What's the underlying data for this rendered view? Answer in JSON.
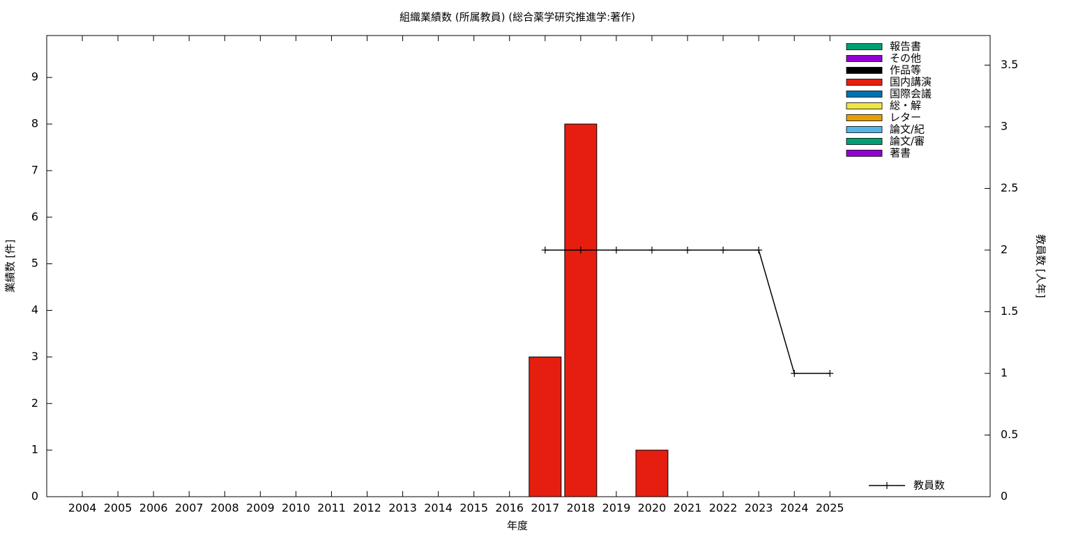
{
  "chart_data": {
    "type": "bar",
    "stacked": true,
    "title": "組織業績数 (所属教員) (総合薬学研究推進学:著作)",
    "xlabel": "年度",
    "ylabel": "業績数 [件]",
    "y2label": "教員数 [人年]",
    "categories": [
      "2004",
      "2005",
      "2006",
      "2007",
      "2008",
      "2009",
      "2010",
      "2011",
      "2012",
      "2013",
      "2014",
      "2015",
      "2016",
      "2017",
      "2018",
      "2019",
      "2020",
      "2021",
      "2022",
      "2023",
      "2024",
      "2025"
    ],
    "series": [
      {
        "name": "報告書",
        "color": "#009e73",
        "values": [
          0,
          0,
          0,
          0,
          0,
          0,
          0,
          0,
          0,
          0,
          0,
          0,
          0,
          0,
          0,
          0,
          0,
          0,
          0,
          0,
          0,
          0
        ]
      },
      {
        "name": "その他",
        "color": "#9400d3",
        "values": [
          0,
          0,
          0,
          0,
          0,
          0,
          0,
          0,
          0,
          0,
          0,
          0,
          0,
          0,
          0,
          0,
          0,
          0,
          0,
          0,
          0,
          0
        ]
      },
      {
        "name": "作品等",
        "color": "#000000",
        "values": [
          0,
          0,
          0,
          0,
          0,
          0,
          0,
          0,
          0,
          0,
          0,
          0,
          0,
          0,
          0,
          0,
          0,
          0,
          0,
          0,
          0,
          0
        ]
      },
      {
        "name": "国内講演",
        "color": "#e51e10",
        "values": [
          0,
          0,
          0,
          0,
          0,
          0,
          0,
          0,
          0,
          0,
          0,
          0,
          0,
          3,
          8,
          0,
          1,
          0,
          0,
          0,
          0,
          0
        ]
      },
      {
        "name": "国際会議",
        "color": "#0072b2",
        "values": [
          0,
          0,
          0,
          0,
          0,
          0,
          0,
          0,
          0,
          0,
          0,
          0,
          0,
          0,
          0,
          0,
          0,
          0,
          0,
          0,
          0,
          0
        ]
      },
      {
        "name": "総・解",
        "color": "#f0e442",
        "values": [
          0,
          0,
          0,
          0,
          0,
          0,
          0,
          0,
          0,
          0,
          0,
          0,
          0,
          0,
          0,
          0,
          0,
          0,
          0,
          0,
          0,
          0
        ]
      },
      {
        "name": "レター",
        "color": "#e69f00",
        "values": [
          0,
          0,
          0,
          0,
          0,
          0,
          0,
          0,
          0,
          0,
          0,
          0,
          0,
          0,
          0,
          0,
          0,
          0,
          0,
          0,
          0,
          0
        ]
      },
      {
        "name": "論文/紀",
        "color": "#56b4e9",
        "values": [
          0,
          0,
          0,
          0,
          0,
          0,
          0,
          0,
          0,
          0,
          0,
          0,
          0,
          0,
          0,
          0,
          0,
          0,
          0,
          0,
          0,
          0
        ]
      },
      {
        "name": "論文/審",
        "color": "#009e73",
        "values": [
          0,
          0,
          0,
          0,
          0,
          0,
          0,
          0,
          0,
          0,
          0,
          0,
          0,
          0,
          0,
          0,
          0,
          0,
          0,
          0,
          0,
          0
        ]
      },
      {
        "name": "著書",
        "color": "#9400d3",
        "values": [
          0,
          0,
          0,
          0,
          0,
          0,
          0,
          0,
          0,
          0,
          0,
          0,
          0,
          0,
          0,
          0,
          0,
          0,
          0,
          0,
          0,
          0
        ]
      },
      {
        "name": "教員数",
        "type": "line",
        "axis": "y2",
        "color": "#000000",
        "values": [
          null,
          null,
          null,
          null,
          null,
          null,
          null,
          null,
          null,
          null,
          null,
          null,
          null,
          2,
          2,
          2,
          2,
          2,
          2,
          2,
          1,
          1
        ]
      }
    ],
    "ylim": [
      0,
      9.9
    ],
    "yticks": [
      0,
      1,
      2,
      3,
      4,
      5,
      6,
      7,
      8,
      9
    ],
    "y2lim": [
      0,
      3.74
    ],
    "y2ticks": [
      0,
      0.5,
      1,
      1.5,
      2,
      2.5,
      3,
      3.5
    ],
    "legend": "top-right"
  }
}
